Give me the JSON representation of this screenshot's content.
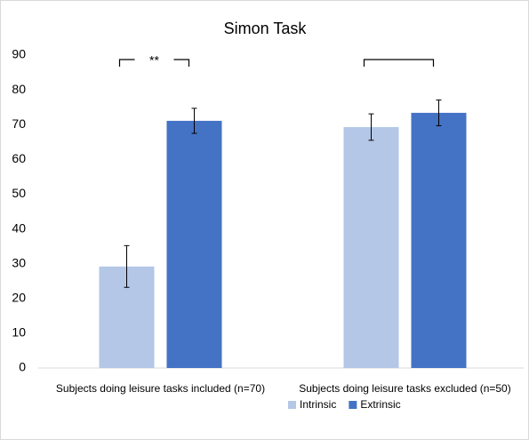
{
  "chart_data": {
    "type": "bar",
    "title": "Simon Task",
    "categories": [
      "Subjects doing leisure tasks included (n=70)",
      "Subjects doing leisure tasks excluded (n=50)"
    ],
    "series": [
      {
        "name": "Intrinsic",
        "color": "#b4c7e7",
        "values": [
          29.2,
          69.3
        ],
        "errors": [
          6,
          3.8
        ]
      },
      {
        "name": "Extrinsic",
        "color": "#4472c4",
        "values": [
          71.1,
          73.4
        ],
        "errors": [
          3.6,
          3.7
        ]
      }
    ],
    "annotation": "**",
    "ylim": [
      0,
      90
    ],
    "yticks": [
      0,
      10,
      20,
      30,
      40,
      50,
      60,
      70,
      80,
      90
    ],
    "grid": false,
    "legend": "bottom"
  }
}
